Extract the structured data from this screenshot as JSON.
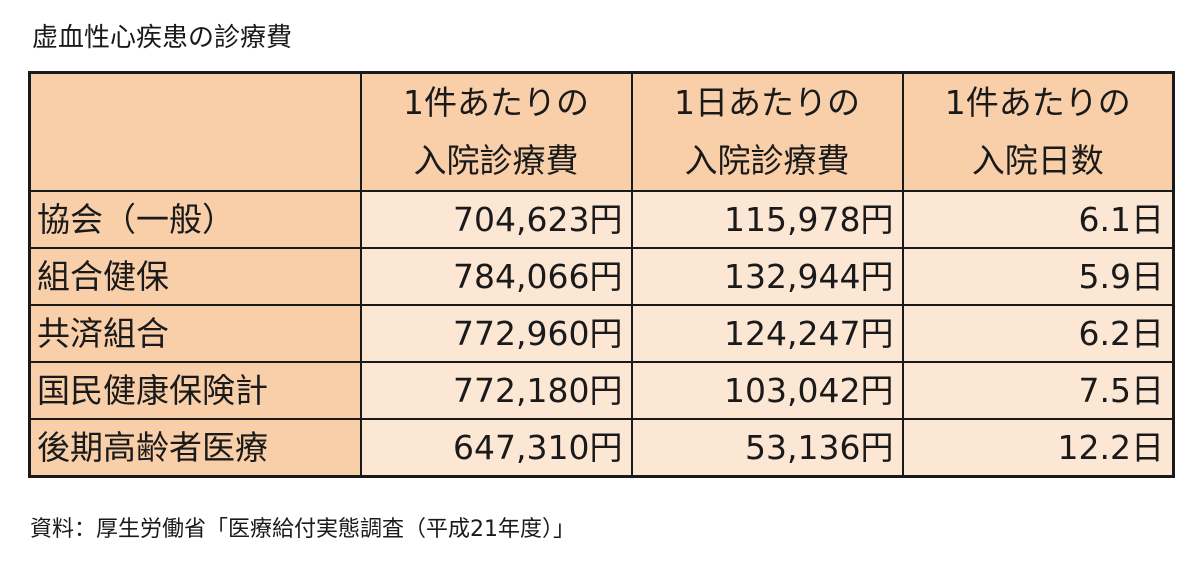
{
  "title": "虚血性心疾患の診療費",
  "table": {
    "columns": [
      {
        "line1": "1件あたりの",
        "line2": "入院診療費"
      },
      {
        "line1": "1日あたりの",
        "line2": "入院診療費"
      },
      {
        "line1": "1件あたりの",
        "line2": "入院日数"
      }
    ],
    "rows": [
      {
        "label": "協会（一般）",
        "cost_per_case": "704,623円",
        "cost_per_day": "115,978円",
        "days_per_case": "6.1日"
      },
      {
        "label": "組合健保",
        "cost_per_case": "784,066円",
        "cost_per_day": "132,944円",
        "days_per_case": "5.9日"
      },
      {
        "label": "共済組合",
        "cost_per_case": "772,960円",
        "cost_per_day": "124,247円",
        "days_per_case": "6.2日"
      },
      {
        "label": "国民健康保険計",
        "cost_per_case": "772,180円",
        "cost_per_day": "103,042円",
        "days_per_case": "7.5日"
      },
      {
        "label": "後期高齢者医療",
        "cost_per_case": "647,310円",
        "cost_per_day": "53,136円",
        "days_per_case": "12.2日"
      }
    ]
  },
  "source": "資料：厚生労働省「医療給付実態調査（平成21年度）」",
  "colors": {
    "header_fill": "#f8cfa9",
    "cell_fill": "#fce6d4",
    "border": "#1a1a1a"
  }
}
